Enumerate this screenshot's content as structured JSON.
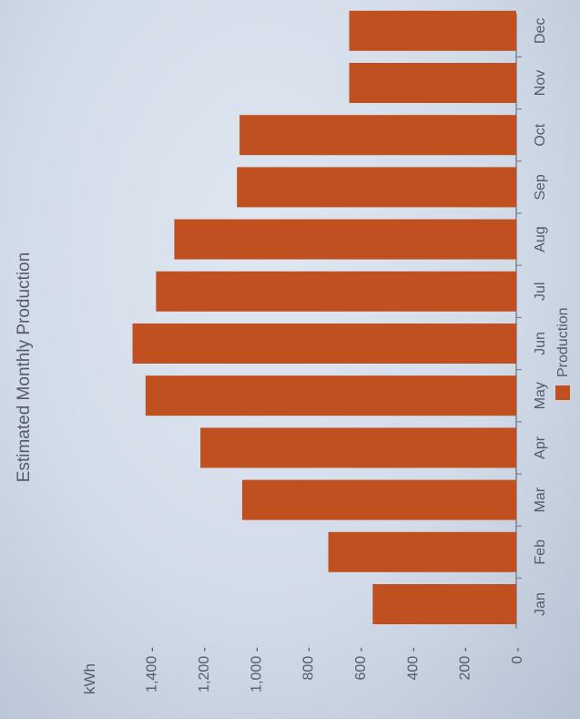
{
  "chart_data": {
    "type": "bar",
    "orientation": "horizontal, rotated 90°",
    "title": "Estimated Monthly Production",
    "ylabel": "kWh",
    "xlabel": "",
    "categories": [
      "Jan",
      "Feb",
      "Mar",
      "Apr",
      "May",
      "Jun",
      "Jul",
      "Aug",
      "Sep",
      "Oct",
      "Nov",
      "Dec"
    ],
    "series": [
      {
        "name": "Production",
        "values": [
          550,
          720,
          1050,
          1210,
          1420,
          1470,
          1380,
          1310,
          1070,
          1060,
          640,
          640
        ],
        "color": "#c0501f"
      }
    ],
    "ylim": [
      0,
      1500
    ],
    "yticks": [
      0,
      200,
      400,
      600,
      800,
      1000,
      1200,
      1400
    ],
    "ytick_labels": [
      "0",
      "200",
      "400",
      "600",
      "800",
      "1,000",
      "1,200",
      "1,400"
    ],
    "grid": false,
    "legend": "bottom"
  },
  "colors": {
    "bar": "#c0501f",
    "text": "#545b66",
    "axis": "#7a8290"
  }
}
